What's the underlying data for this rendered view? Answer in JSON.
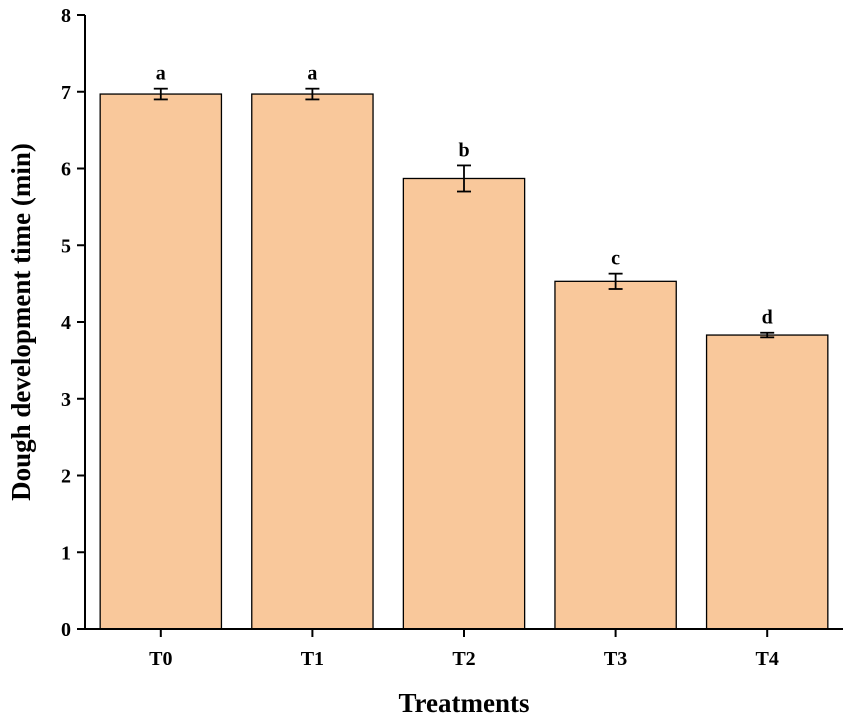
{
  "chart_data": {
    "type": "bar",
    "categories": [
      "T0",
      "T1",
      "T2",
      "T3",
      "T4"
    ],
    "values": [
      6.97,
      6.97,
      5.87,
      4.53,
      3.83
    ],
    "errors": [
      0.07,
      0.07,
      0.17,
      0.1,
      0.03
    ],
    "significance": [
      "a",
      "a",
      "b",
      "c",
      "d"
    ],
    "xlabel": "Treatments",
    "ylabel": "Dough development time (min)",
    "ylim": [
      0,
      8
    ],
    "yticks": [
      "0",
      "1",
      "2",
      "3",
      "4",
      "5",
      "6",
      "7",
      "8"
    ],
    "bar_color": "#f9c89b",
    "grid": false,
    "legend": "none"
  }
}
